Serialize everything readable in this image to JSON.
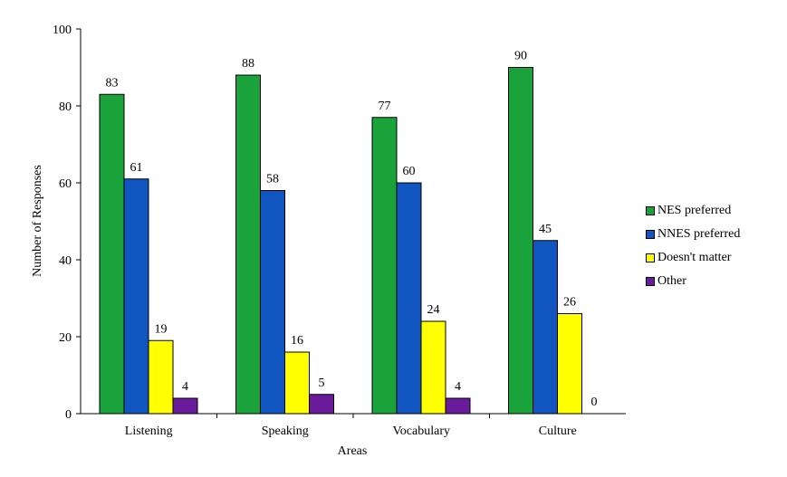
{
  "chart_data": {
    "type": "bar",
    "categories": [
      "Listening",
      "Speaking",
      "Vocabulary",
      "Culture"
    ],
    "series": [
      {
        "name": "NES preferred",
        "values": [
          83,
          88,
          77,
          90
        ],
        "color": "#1aa33a"
      },
      {
        "name": "NNES preferred",
        "values": [
          61,
          58,
          60,
          45
        ],
        "color": "#1155c0"
      },
      {
        "name": "Doesn't matter",
        "values": [
          19,
          16,
          24,
          26
        ],
        "color": "#ffff00"
      },
      {
        "name": "Other",
        "values": [
          4,
          5,
          4,
          0
        ],
        "color": "#6a1b9a"
      }
    ],
    "xlabel": "Areas",
    "ylabel": "Number  of  Responses",
    "ylim": [
      0,
      100
    ],
    "yticks": [
      0,
      20,
      40,
      60,
      80,
      100
    ],
    "grid": false,
    "legend_position": "right"
  }
}
